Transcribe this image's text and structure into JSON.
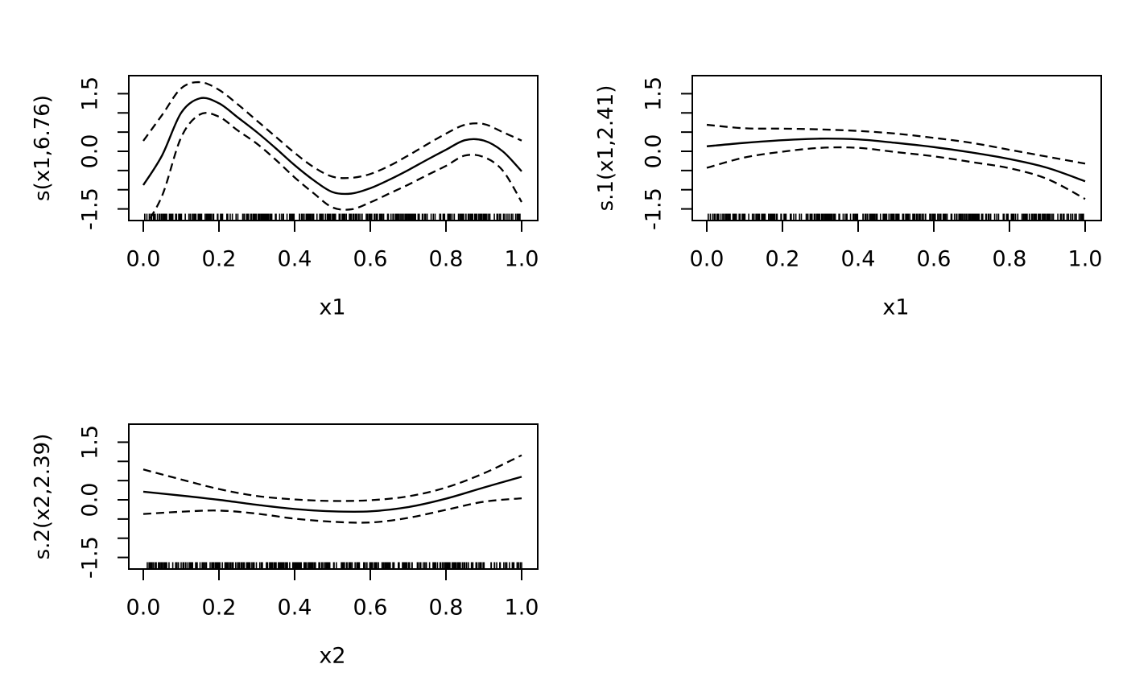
{
  "figure": {
    "background": "#ffffff",
    "stroke_color": "#000000",
    "description": "GAM smooth term plots (three panels, bottom-right empty)"
  },
  "chart_data": [
    {
      "type": "line",
      "panel": "top-left",
      "ylabel": "s(x1,6.76)",
      "xlabel": "x1",
      "xlim": [
        0,
        1
      ],
      "ylim": [
        -1.8,
        1.95
      ],
      "grid": false,
      "legend": "none",
      "x_ticks": [
        {
          "value": 0.0,
          "label": "0.0"
        },
        {
          "value": 0.2,
          "label": "0.2"
        },
        {
          "value": 0.4,
          "label": "0.4"
        },
        {
          "value": 0.6,
          "label": "0.6"
        },
        {
          "value": 0.8,
          "label": "0.8"
        },
        {
          "value": 1.0,
          "label": "1.0"
        }
      ],
      "y_minor_tick_values": [
        -1.5,
        -1.0,
        -0.5,
        0.0,
        0.5,
        1.0,
        1.5
      ],
      "y_labeled_ticks": [
        {
          "value": -1.5,
          "label": "-1.5"
        },
        {
          "value": 0.0,
          "label": "0.0"
        },
        {
          "value": 1.5,
          "label": "1.5"
        }
      ],
      "x": [
        0,
        0.05,
        0.1,
        0.15,
        0.2,
        0.25,
        0.3,
        0.35,
        0.4,
        0.45,
        0.5,
        0.55,
        0.6,
        0.65,
        0.7,
        0.75,
        0.8,
        0.85,
        0.9,
        0.95,
        1
      ],
      "series": [
        {
          "name": "smooth-estimate",
          "line": "solid",
          "values": [
            -0.88,
            -0.1,
            1.0,
            1.38,
            1.25,
            0.88,
            0.5,
            0.08,
            -0.36,
            -0.75,
            -1.06,
            -1.1,
            -0.96,
            -0.74,
            -0.49,
            -0.22,
            0.04,
            0.29,
            0.28,
            0.0,
            -0.52
          ]
        },
        {
          "name": "upper-ci",
          "line": "dashed",
          "values": [
            0.27,
            0.95,
            1.64,
            1.8,
            1.6,
            1.22,
            0.8,
            0.38,
            -0.04,
            -0.41,
            -0.66,
            -0.69,
            -0.59,
            -0.38,
            -0.11,
            0.18,
            0.46,
            0.69,
            0.71,
            0.5,
            0.28
          ]
        },
        {
          "name": "lower-ci",
          "line": "dashed",
          "values": [
            -2.03,
            -1.15,
            0.36,
            0.96,
            0.9,
            0.54,
            0.2,
            -0.22,
            -0.68,
            -1.09,
            -1.46,
            -1.51,
            -1.33,
            -1.1,
            -0.87,
            -0.62,
            -0.38,
            -0.11,
            -0.15,
            -0.5,
            -1.32
          ]
        }
      ],
      "rug": {
        "seed": 42,
        "count": 350
      }
    },
    {
      "type": "line",
      "panel": "top-right",
      "ylabel": "s.1(x1,2.41)",
      "xlabel": "x1",
      "xlim": [
        0,
        1
      ],
      "ylim": [
        -1.8,
        1.95
      ],
      "grid": false,
      "legend": "none",
      "x_ticks": [
        {
          "value": 0.0,
          "label": "0.0"
        },
        {
          "value": 0.2,
          "label": "0.2"
        },
        {
          "value": 0.4,
          "label": "0.4"
        },
        {
          "value": 0.6,
          "label": "0.6"
        },
        {
          "value": 0.8,
          "label": "0.8"
        },
        {
          "value": 1.0,
          "label": "1.0"
        }
      ],
      "y_minor_tick_values": [
        -1.5,
        -1.0,
        -0.5,
        0.0,
        0.5,
        1.0,
        1.5
      ],
      "y_labeled_ticks": [
        {
          "value": -1.5,
          "label": "-1.5"
        },
        {
          "value": 0.0,
          "label": "0.0"
        },
        {
          "value": 1.5,
          "label": "1.5"
        }
      ],
      "x": [
        0,
        0.1,
        0.2,
        0.3,
        0.4,
        0.5,
        0.6,
        0.7,
        0.8,
        0.9,
        1
      ],
      "series": [
        {
          "name": "smooth-estimate",
          "line": "solid",
          "values": [
            0.13,
            0.22,
            0.29,
            0.33,
            0.31,
            0.22,
            0.11,
            -0.03,
            -0.2,
            -0.43,
            -0.78
          ]
        },
        {
          "name": "upper-ci",
          "line": "dashed",
          "values": [
            0.69,
            0.6,
            0.59,
            0.57,
            0.53,
            0.46,
            0.35,
            0.22,
            0.04,
            -0.14,
            -0.32
          ]
        },
        {
          "name": "lower-ci",
          "line": "dashed",
          "values": [
            -0.43,
            -0.16,
            -0.01,
            0.09,
            0.09,
            -0.02,
            -0.13,
            -0.28,
            -0.44,
            -0.72,
            -1.24
          ]
        }
      ],
      "rug": {
        "seed": 42,
        "count": 350
      }
    },
    {
      "type": "line",
      "panel": "bottom-left",
      "ylabel": "s.2(x2,2.39)",
      "xlabel": "x2",
      "xlim": [
        0,
        1
      ],
      "ylim": [
        -1.8,
        1.95
      ],
      "grid": false,
      "legend": "none",
      "x_ticks": [
        {
          "value": 0.0,
          "label": "0.0"
        },
        {
          "value": 0.2,
          "label": "0.2"
        },
        {
          "value": 0.4,
          "label": "0.4"
        },
        {
          "value": 0.6,
          "label": "0.6"
        },
        {
          "value": 0.8,
          "label": "0.8"
        },
        {
          "value": 1.0,
          "label": "1.0"
        }
      ],
      "y_minor_tick_values": [
        -1.5,
        -1.0,
        -0.5,
        0.0,
        0.5,
        1.0,
        1.5
      ],
      "y_labeled_ticks": [
        {
          "value": -1.5,
          "label": "-1.5"
        },
        {
          "value": 0.0,
          "label": "0.0"
        },
        {
          "value": 1.5,
          "label": "1.5"
        }
      ],
      "x": [
        0,
        0.1,
        0.2,
        0.3,
        0.4,
        0.5,
        0.6,
        0.7,
        0.8,
        0.9,
        1
      ],
      "series": [
        {
          "name": "smooth-estimate",
          "line": "solid",
          "values": [
            0.21,
            0.11,
            0.0,
            -0.13,
            -0.24,
            -0.3,
            -0.3,
            -0.19,
            0.03,
            0.32,
            0.6
          ]
        },
        {
          "name": "upper-ci",
          "line": "dashed",
          "values": [
            0.79,
            0.53,
            0.28,
            0.1,
            0.01,
            -0.03,
            -0.01,
            0.09,
            0.32,
            0.69,
            1.16
          ]
        },
        {
          "name": "lower-ci",
          "line": "dashed",
          "values": [
            -0.37,
            -0.31,
            -0.28,
            -0.36,
            -0.49,
            -0.57,
            -0.59,
            -0.47,
            -0.26,
            -0.05,
            0.04
          ]
        }
      ],
      "rug": {
        "seed": 1337,
        "count": 350
      }
    }
  ]
}
